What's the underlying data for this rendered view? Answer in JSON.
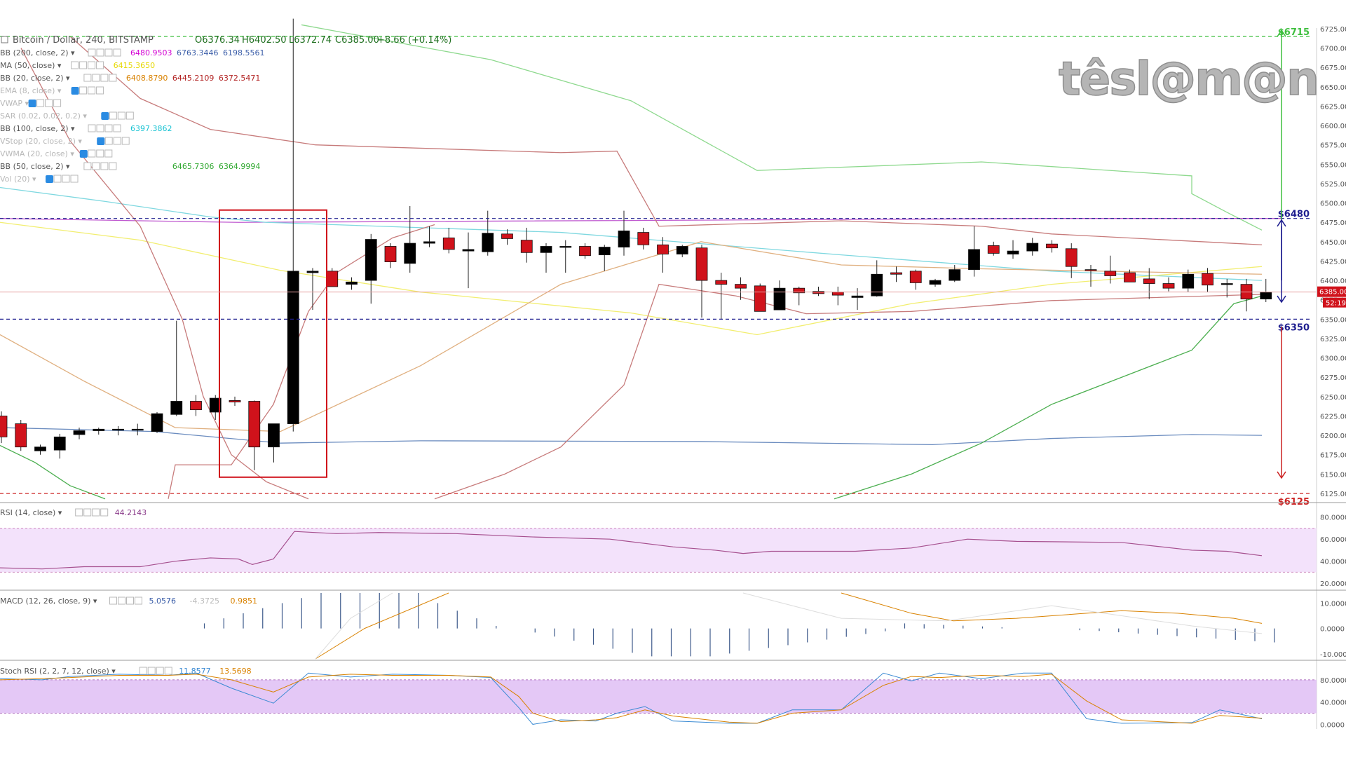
{
  "header": {
    "symbol": "Bitcoin / Dollar, 240, BITSTAMP",
    "open": "O6376.34",
    "high": "H6402.50",
    "low": "L6372.74",
    "close": "C6385.00",
    "change": "+8.66 (+0.14%)"
  },
  "watermark": "têsl@m@n",
  "legend": [
    {
      "label": "BB (200, close, 2)",
      "values": [
        {
          "v": "6480.9503",
          "c": "#d300d3"
        },
        {
          "v": "6763.3446",
          "c": "#3a5da8"
        },
        {
          "v": "6198.5561",
          "c": "#3a5da8"
        }
      ],
      "eye": false
    },
    {
      "label": "MA (50, close)",
      "values": [
        {
          "v": "6415.3650",
          "c": "#e6d800"
        }
      ],
      "eye": false
    },
    {
      "label": "BB (20, close, 2)",
      "values": [
        {
          "v": "6408.8790",
          "c": "#d98200"
        },
        {
          "v": "6445.2109",
          "c": "#b22222"
        },
        {
          "v": "6372.5471",
          "c": "#b22222"
        }
      ],
      "eye": false
    },
    {
      "label": "EMA (8, close)",
      "values": [],
      "eye": true
    },
    {
      "label": "VWAP",
      "values": [],
      "eye": true
    },
    {
      "label": "SAR (0.02, 0.02, 0.2)",
      "values": [],
      "eye": true
    },
    {
      "label": "BB (100, close, 2)",
      "values": [
        {
          "v": "6397.3862",
          "c": "#19c3d3"
        }
      ],
      "eye": false
    },
    {
      "label": "VStop (20, close, 2)",
      "values": [],
      "eye": true
    },
    {
      "label": "VWMA (20, close)",
      "values": [],
      "eye": true
    },
    {
      "label": "BB (50, close, 2)",
      "values": [
        {
          "v": "",
          "c": "#2fa82f"
        },
        {
          "v": "6465.7306",
          "c": "#2fa82f"
        },
        {
          "v": "6364.9994",
          "c": "#2fa82f"
        }
      ],
      "eye": false
    },
    {
      "label": "Vol (20)",
      "values": [],
      "eye": true
    }
  ],
  "price_axis": {
    "ticks": [
      "6725.00",
      "6700.00",
      "6675.00",
      "6650.00",
      "6625.00",
      "6600.00",
      "6575.00",
      "6550.00",
      "6525.00",
      "6500.00",
      "6475.00",
      "6450.00",
      "6425.00",
      "6400.00",
      "6375.00",
      "6350.00",
      "6325.00",
      "6300.00",
      "6275.00",
      "6250.00",
      "6225.00",
      "6200.00",
      "6175.00",
      "6150.00",
      "6125.00"
    ],
    "current_price": "6385.00",
    "countdown": "52:19"
  },
  "levels": [
    {
      "label": "$6715",
      "value": 6715,
      "color": "#3fbf3f"
    },
    {
      "label": "$6480",
      "value": 6480,
      "color": "#1e1e8f"
    },
    {
      "label": "$6350",
      "value": 6350,
      "color": "#1e1e8f"
    },
    {
      "label": "$6125",
      "value": 6125,
      "color": "#cc2222"
    }
  ],
  "rsi": {
    "label": "RSI (14, close)",
    "value": "44.2143",
    "ticks": [
      "80.0000",
      "60.0000",
      "40.0000",
      "20.0000"
    ]
  },
  "macd": {
    "label": "MACD (12, 26, close, 9)",
    "values": [
      {
        "v": "5.0576",
        "c": "#3a5da8"
      },
      {
        "v": "-4.3725",
        "c": "#bbbbbb"
      },
      {
        "v": "0.9851",
        "c": "#d98200"
      }
    ],
    "ticks": [
      "10.0000",
      "0.0000",
      "-10.0000"
    ]
  },
  "stoch": {
    "label": "Stoch RSI (2, 2, 7, 12, close)",
    "values": [
      {
        "v": "11.8577",
        "c": "#3a8ad3"
      },
      {
        "v": "13.5698",
        "c": "#d98200"
      }
    ],
    "ticks": [
      "80.0000",
      "40.0000",
      "0.0000"
    ]
  },
  "chart_data": {
    "type": "candlestick",
    "title": "Bitcoin / Dollar, 240, BITSTAMP",
    "y_range": [
      6118,
      6730
    ],
    "colors": {
      "up": "#000000",
      "down": "#d0121b"
    },
    "candles": [
      [
        6225,
        6231,
        6190,
        6198
      ],
      [
        6215,
        6220,
        6180,
        6185
      ],
      [
        6180,
        6188,
        6175,
        6185
      ],
      [
        6181,
        6202,
        6170,
        6198
      ],
      [
        6201,
        6210,
        6195,
        6206
      ],
      [
        6206,
        6210,
        6201,
        6208
      ],
      [
        6208,
        6212,
        6200,
        6208
      ],
      [
        6208,
        6215,
        6200,
        6208
      ],
      [
        6205,
        6230,
        6203,
        6228
      ],
      [
        6227,
        6348,
        6225,
        6244
      ],
      [
        6244,
        6252,
        6225,
        6233
      ],
      [
        6230,
        6252,
        6220,
        6248
      ],
      [
        6245,
        6250,
        6238,
        6243
      ],
      [
        6244,
        6245,
        6155,
        6185
      ],
      [
        6185,
        6215,
        6165,
        6215
      ],
      [
        6215,
        6738,
        6205,
        6412
      ],
      [
        6410,
        6416,
        6362,
        6412
      ],
      [
        6412,
        6416,
        6392,
        6392
      ],
      [
        6395,
        6404,
        6388,
        6398
      ],
      [
        6400,
        6460,
        6370,
        6453
      ],
      [
        6444,
        6448,
        6416,
        6424
      ],
      [
        6422,
        6496,
        6410,
        6448
      ],
      [
        6448,
        6470,
        6443,
        6450
      ],
      [
        6455,
        6468,
        6435,
        6440
      ],
      [
        6438,
        6462,
        6390,
        6440
      ],
      [
        6437,
        6490,
        6432,
        6461
      ],
      [
        6460,
        6466,
        6446,
        6454
      ],
      [
        6452,
        6468,
        6423,
        6436
      ],
      [
        6436,
        6448,
        6410,
        6444
      ],
      [
        6444,
        6452,
        6410,
        6444
      ],
      [
        6444,
        6448,
        6428,
        6432
      ],
      [
        6433,
        6446,
        6412,
        6443
      ],
      [
        6443,
        6490,
        6432,
        6464
      ],
      [
        6462,
        6468,
        6440,
        6446
      ],
      [
        6446,
        6456,
        6410,
        6434
      ],
      [
        6434,
        6446,
        6430,
        6444
      ],
      [
        6442,
        6446,
        6352,
        6400
      ],
      [
        6400,
        6410,
        6350,
        6395
      ],
      [
        6395,
        6404,
        6375,
        6390
      ],
      [
        6393,
        6396,
        6360,
        6360
      ],
      [
        6362,
        6400,
        6362,
        6390
      ],
      [
        6390,
        6392,
        6368,
        6384
      ],
      [
        6386,
        6392,
        6380,
        6383
      ],
      [
        6385,
        6392,
        6368,
        6381
      ],
      [
        6378,
        6390,
        6362,
        6380
      ],
      [
        6380,
        6426,
        6379,
        6408
      ],
      [
        6410,
        6418,
        6398,
        6408
      ],
      [
        6412,
        6414,
        6388,
        6397
      ],
      [
        6395,
        6402,
        6392,
        6400
      ],
      [
        6400,
        6420,
        6398,
        6414
      ],
      [
        6414,
        6470,
        6405,
        6440
      ],
      [
        6445,
        6450,
        6432,
        6435
      ],
      [
        6434,
        6452,
        6428,
        6438
      ],
      [
        6438,
        6455,
        6432,
        6448
      ],
      [
        6447,
        6452,
        6436,
        6442
      ],
      [
        6441,
        6448,
        6403,
        6418
      ],
      [
        6414,
        6420,
        6392,
        6413
      ],
      [
        6412,
        6432,
        6396,
        6406
      ],
      [
        6410,
        6414,
        6398,
        6398
      ],
      [
        6402,
        6416,
        6376,
        6396
      ],
      [
        6396,
        6404,
        6386,
        6390
      ],
      [
        6390,
        6414,
        6385,
        6408
      ],
      [
        6409,
        6416,
        6385,
        6394
      ],
      [
        6396,
        6402,
        6378,
        6396
      ],
      [
        6395,
        6402,
        6360,
        6376
      ],
      [
        6376,
        6402,
        6372,
        6385
      ]
    ],
    "annotations": [
      {
        "type": "box",
        "from_index": 12,
        "to_index": 16,
        "y_range": [
          6146,
          6480
        ],
        "color": "#d0121b"
      }
    ]
  }
}
